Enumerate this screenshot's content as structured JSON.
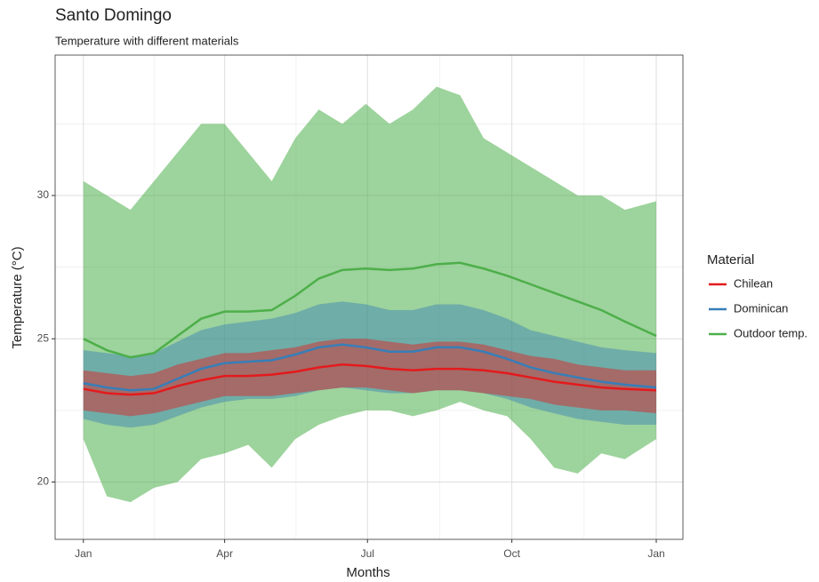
{
  "chart_data": {
    "type": "line",
    "title": "Santo Domingo",
    "subtitle": "Temperature with different materials",
    "x_label": "Months",
    "y_label": "Temperature (°C)",
    "legend_title": "Material",
    "legend": "right",
    "grid": true,
    "xlim": [
      -18,
      382
    ],
    "ylim": [
      18,
      34.9
    ],
    "xticks": [
      {
        "value": 0,
        "label": "Jan"
      },
      {
        "value": 90,
        "label": "Apr"
      },
      {
        "value": 181,
        "label": "Jul"
      },
      {
        "value": 273,
        "label": "Oct"
      },
      {
        "value": 365,
        "label": "Jan"
      }
    ],
    "yticks": [
      20,
      25,
      30
    ],
    "x_minor_ticks": [
      45,
      135.5,
      227,
      319
    ],
    "y_minor_ticks": [
      22.5,
      27.5,
      32.5
    ],
    "x": [
      0,
      15,
      30,
      45,
      60,
      75,
      90,
      105,
      120,
      135,
      150,
      165,
      180,
      195,
      210,
      225,
      240,
      255,
      270,
      285,
      300,
      315,
      330,
      345,
      365
    ],
    "series": [
      {
        "name": "Chilean",
        "color": "#e41a1c",
        "values": [
          23.25,
          23.1,
          23.05,
          23.1,
          23.35,
          23.55,
          23.7,
          23.7,
          23.75,
          23.85,
          24.0,
          24.1,
          24.05,
          23.95,
          23.9,
          23.95,
          23.95,
          23.9,
          23.8,
          23.65,
          23.5,
          23.4,
          23.3,
          23.25,
          23.2
        ],
        "band_low": [
          22.5,
          22.4,
          22.3,
          22.4,
          22.6,
          22.8,
          23.0,
          23.0,
          23.0,
          23.1,
          23.2,
          23.3,
          23.3,
          23.2,
          23.1,
          23.2,
          23.2,
          23.1,
          23.0,
          22.9,
          22.7,
          22.6,
          22.5,
          22.5,
          22.4
        ],
        "band_high": [
          23.9,
          23.8,
          23.7,
          23.8,
          24.1,
          24.3,
          24.5,
          24.5,
          24.6,
          24.7,
          24.9,
          25.0,
          25.0,
          24.9,
          24.8,
          24.9,
          24.9,
          24.8,
          24.6,
          24.4,
          24.3,
          24.1,
          24.0,
          23.9,
          23.9
        ]
      },
      {
        "name": "Dominican",
        "color": "#377eb8",
        "values": [
          23.45,
          23.3,
          23.2,
          23.25,
          23.6,
          23.95,
          24.15,
          24.2,
          24.25,
          24.45,
          24.7,
          24.8,
          24.7,
          24.55,
          24.55,
          24.7,
          24.7,
          24.55,
          24.3,
          24.0,
          23.8,
          23.65,
          23.5,
          23.4,
          23.3
        ],
        "band_low": [
          22.2,
          22.0,
          21.9,
          22.0,
          22.3,
          22.6,
          22.8,
          22.9,
          22.9,
          23.0,
          23.2,
          23.3,
          23.2,
          23.1,
          23.1,
          23.2,
          23.2,
          23.1,
          22.9,
          22.6,
          22.4,
          22.2,
          22.1,
          22.0,
          22.0
        ],
        "band_high": [
          24.6,
          24.5,
          24.4,
          24.5,
          24.9,
          25.3,
          25.5,
          25.6,
          25.7,
          25.9,
          26.2,
          26.3,
          26.2,
          26.0,
          26.0,
          26.2,
          26.2,
          26.0,
          25.7,
          25.3,
          25.1,
          24.9,
          24.7,
          24.6,
          24.5
        ]
      },
      {
        "name": "Outdoor temp.",
        "color": "#4daf4a",
        "values": [
          25.0,
          24.6,
          24.35,
          24.5,
          25.1,
          25.7,
          25.95,
          25.95,
          26.0,
          26.5,
          27.1,
          27.4,
          27.45,
          27.4,
          27.45,
          27.6,
          27.65,
          27.45,
          27.2,
          26.9,
          26.6,
          26.3,
          26.0,
          25.6,
          25.1
        ],
        "band_low": [
          21.5,
          19.5,
          19.3,
          19.8,
          20.0,
          20.8,
          21.0,
          21.3,
          20.5,
          21.5,
          22.0,
          22.3,
          22.5,
          22.5,
          22.3,
          22.5,
          22.8,
          22.5,
          22.3,
          21.5,
          20.5,
          20.3,
          21.0,
          20.8,
          21.5
        ],
        "band_high": [
          30.5,
          30.0,
          29.5,
          30.5,
          31.5,
          32.5,
          32.5,
          31.5,
          30.5,
          32.0,
          33.0,
          32.5,
          33.2,
          32.5,
          33.0,
          33.8,
          33.5,
          32.0,
          31.5,
          31.0,
          30.5,
          30.0,
          30.0,
          29.5,
          29.8
        ]
      }
    ]
  }
}
